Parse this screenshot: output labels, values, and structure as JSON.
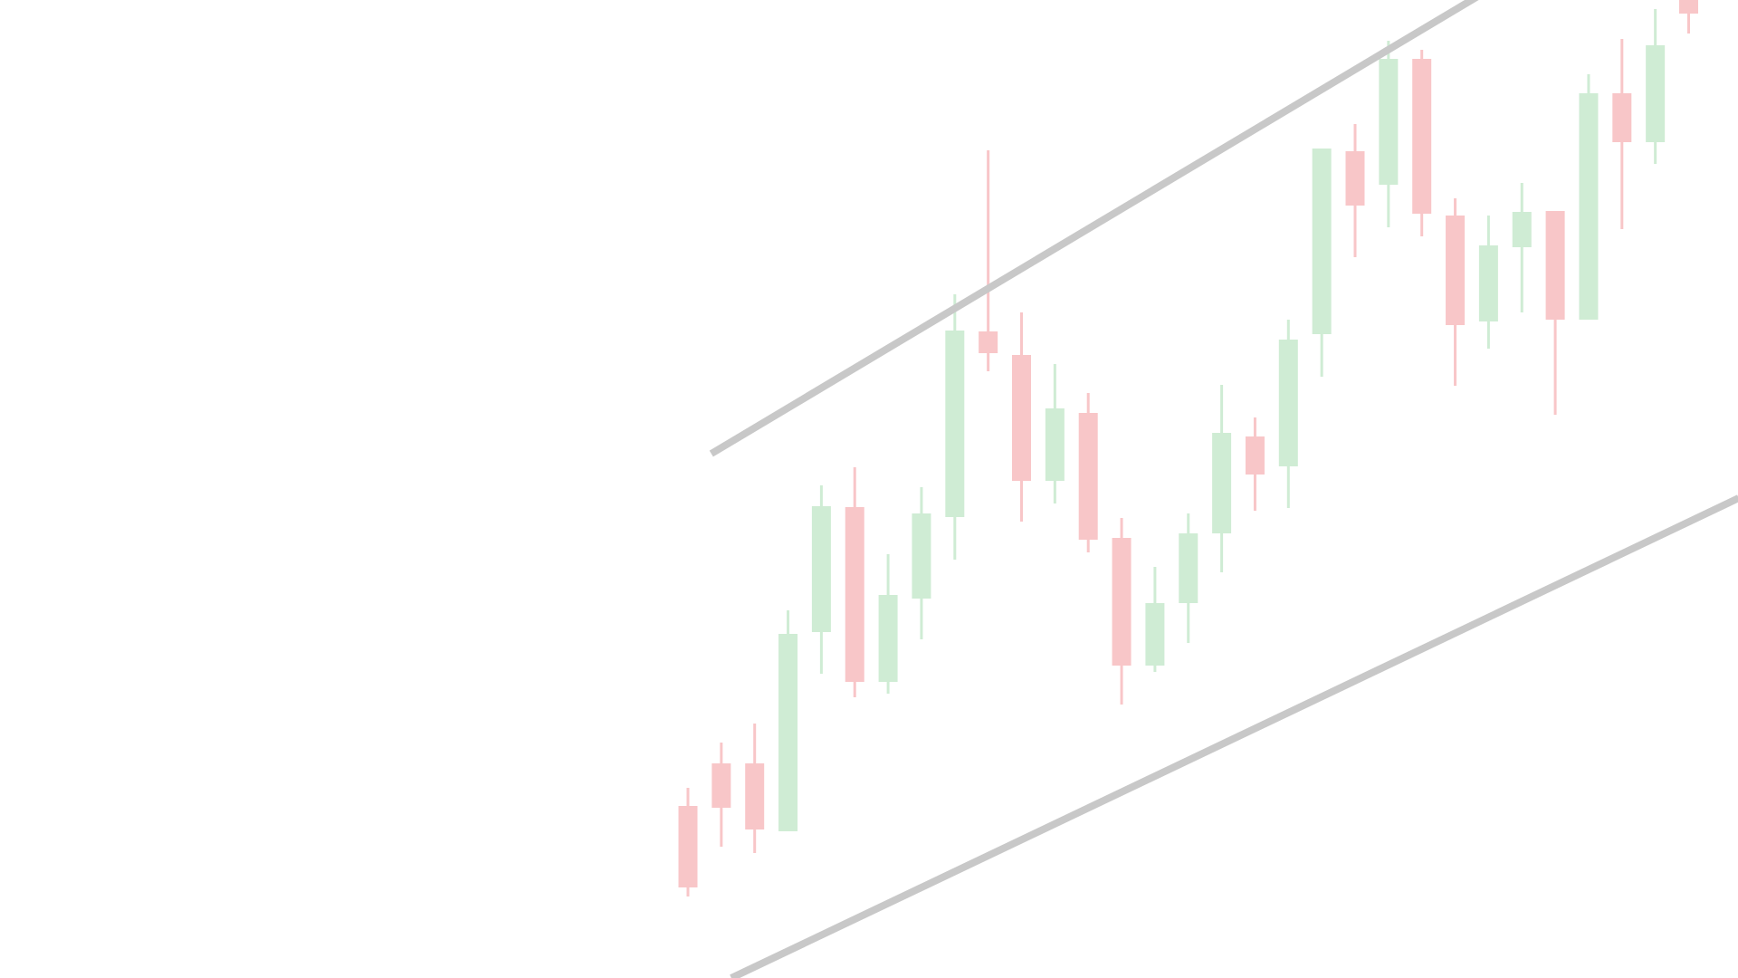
{
  "chart_data": {
    "type": "candlestick",
    "title": "",
    "xlabel": "",
    "ylabel": "",
    "grid": false,
    "legend": "none",
    "colors": {
      "up": "#cfecd4",
      "down": "#f8c6c8",
      "channel": "#c8c8c8",
      "background": "#ffffff"
    },
    "x_range": [
      0,
      54
    ],
    "y_range": [
      -100,
      980
    ],
    "candles": [
      {
        "open": 90,
        "close": 0,
        "high": 110,
        "low": -10
      },
      {
        "open": 137,
        "close": 88,
        "high": 160,
        "low": 45
      },
      {
        "open": 137,
        "close": 64,
        "high": 181,
        "low": 38
      },
      {
        "open": 62,
        "close": 280,
        "high": 306,
        "low": 62
      },
      {
        "open": 282,
        "close": 421,
        "high": 444,
        "low": 236
      },
      {
        "open": 420,
        "close": 227,
        "high": 464,
        "low": 210
      },
      {
        "open": 227,
        "close": 323,
        "high": 368,
        "low": 214
      },
      {
        "open": 319,
        "close": 413,
        "high": 442,
        "low": 274
      },
      {
        "open": 409,
        "close": 615,
        "high": 655,
        "low": 362
      },
      {
        "open": 614,
        "close": 590,
        "high": 814,
        "low": 570
      },
      {
        "open": 588,
        "close": 449,
        "high": 635,
        "low": 404
      },
      {
        "open": 449,
        "close": 529,
        "high": 578,
        "low": 424
      },
      {
        "open": 524,
        "close": 384,
        "high": 546,
        "low": 370
      },
      {
        "open": 386,
        "close": 245,
        "high": 408,
        "low": 202
      },
      {
        "open": 245,
        "close": 314,
        "high": 354,
        "low": 238
      },
      {
        "open": 314,
        "close": 391,
        "high": 413,
        "low": 270
      },
      {
        "open": 391,
        "close": 502,
        "high": 555,
        "low": 348
      },
      {
        "open": 498,
        "close": 456,
        "high": 519,
        "low": 416
      },
      {
        "open": 465,
        "close": 605,
        "high": 627,
        "low": 419
      },
      {
        "open": 611,
        "close": 816,
        "high": 816,
        "low": 564
      },
      {
        "open": 813,
        "close": 753,
        "high": 843,
        "low": 696
      },
      {
        "open": 776,
        "close": 915,
        "high": 935,
        "low": 729
      },
      {
        "open": 915,
        "close": 744,
        "high": 925,
        "low": 719
      },
      {
        "open": 742,
        "close": 621,
        "high": 761,
        "low": 554
      },
      {
        "open": 625,
        "close": 709,
        "high": 742,
        "low": 595
      },
      {
        "open": 707,
        "close": 746,
        "high": 778,
        "low": 635
      },
      {
        "open": 747,
        "close": 627,
        "high": 747,
        "low": 522
      },
      {
        "open": 627,
        "close": 877,
        "high": 898,
        "low": 627
      },
      {
        "open": 877,
        "close": 823,
        "high": 937,
        "low": 727
      },
      {
        "open": 823,
        "close": 930,
        "high": 970,
        "low": 799
      },
      {
        "open": 994,
        "close": 965,
        "high": 1011,
        "low": 943
      }
    ],
    "channel_lines": [
      {
        "name": "upper-channel",
        "from": [
          0.7,
          479
        ],
        "to": [
          28.5,
          1090
        ]
      },
      {
        "name": "lower-channel",
        "from": [
          1.3,
          -100
        ],
        "to": [
          31.5,
          430
        ]
      }
    ]
  }
}
